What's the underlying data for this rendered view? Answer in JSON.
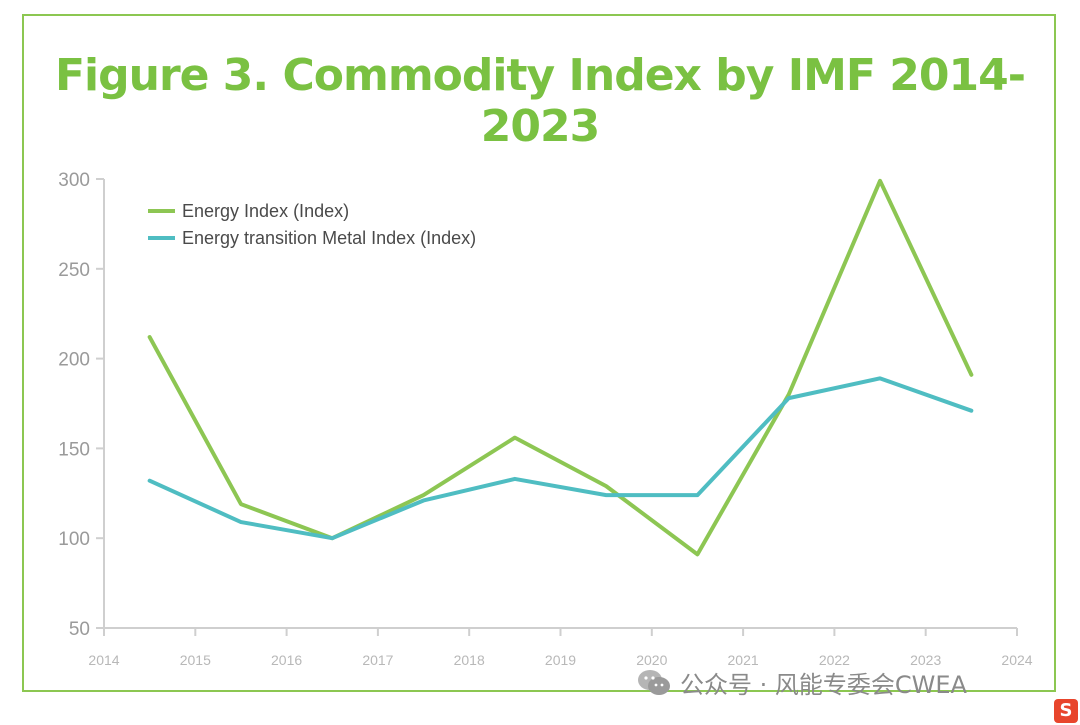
{
  "title": "Figure 3. Commodity Index by IMF 2014-2023",
  "watermark": "公众号 · 风能专委会CWEA",
  "colors": {
    "energy": "#8dc653",
    "metal": "#4fbdc2",
    "frame": "#8cc751",
    "title": "#7ac142",
    "axis": "#cfcfcf"
  },
  "chart_data": {
    "type": "line",
    "x_ticks": [
      "2014",
      "2015",
      "2016",
      "2017",
      "2018",
      "2019",
      "2020",
      "2021",
      "2022",
      "2023",
      "2024"
    ],
    "y_ticks": [
      "300",
      "250",
      "200",
      "150",
      "100",
      "50"
    ],
    "ylim": [
      50,
      300
    ],
    "xlim": [
      2014,
      2024
    ],
    "grid": false,
    "legend": "top-left",
    "series": [
      {
        "name": "Energy Index (Index)",
        "x": [
          2014.5,
          2015.5,
          2016.5,
          2017.5,
          2018.5,
          2019.5,
          2020.5,
          2021.5,
          2022.5,
          2023.5
        ],
        "values": [
          212,
          119,
          100,
          124,
          156,
          129,
          91,
          180,
          299,
          191
        ]
      },
      {
        "name": "Energy transition Metal Index (Index)",
        "x": [
          2014.5,
          2015.5,
          2016.5,
          2017.5,
          2018.5,
          2019.5,
          2020.5,
          2021.5,
          2022.5,
          2023.5
        ],
        "values": [
          132,
          109,
          100,
          121,
          133,
          124,
          124,
          178,
          189,
          171
        ]
      }
    ]
  }
}
